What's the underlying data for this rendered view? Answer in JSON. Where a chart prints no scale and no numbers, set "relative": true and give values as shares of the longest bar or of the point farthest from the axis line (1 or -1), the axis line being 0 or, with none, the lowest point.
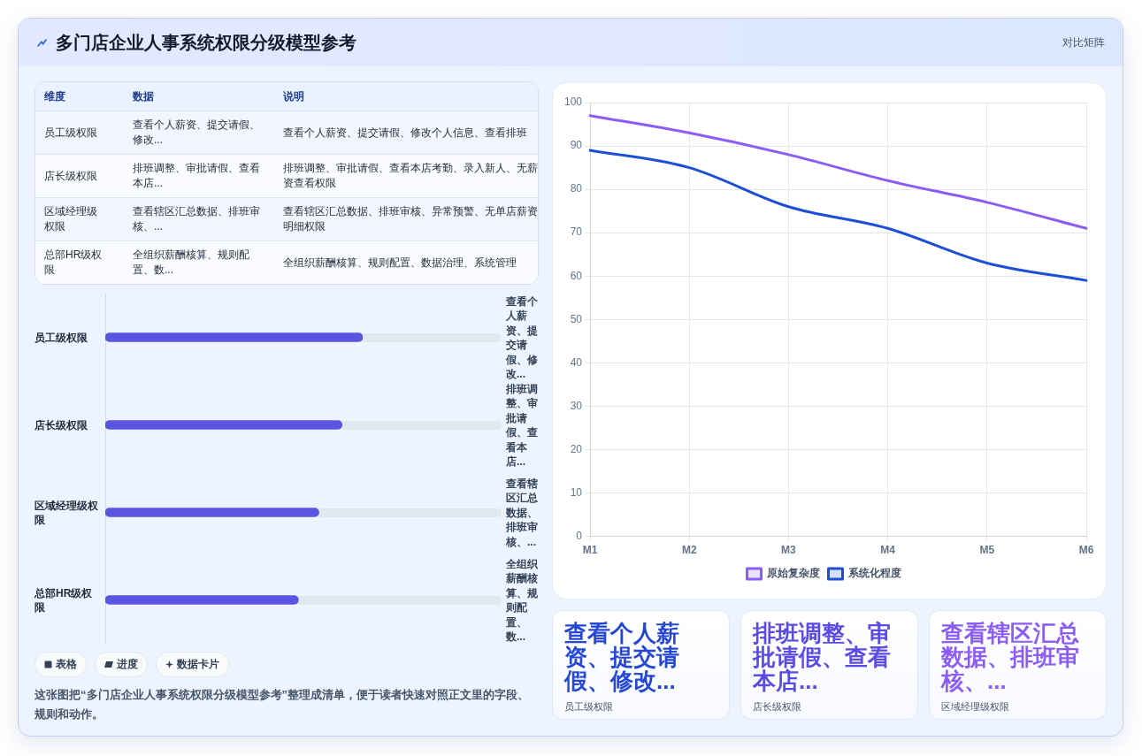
{
  "chart_data": [
    {
      "type": "other",
      "title": "多门店企业人事系统权限分级模型参考",
      "subtitle": "对比矩阵"
    },
    {
      "type": "other",
      "categories": [
        "维度",
        "数据",
        "说明"
      ],
      "y_categories": [
        "员工级权限",
        "店长级权限",
        "区域经理级权限",
        "总部HR级权限"
      ],
      "cell_labels": [
        [
          "查看个人薪资、提交请假、修改...",
          "查看个人薪资、提交请假、修改个人信息、查看排班"
        ],
        [
          "排班调整、审批请假、查看本店...",
          "排班调整、审批请假、查看本店考勤、录入新人、无薪资查看权限"
        ],
        [
          "查看辖区汇总数据、排班审核、...",
          "查看辖区汇总数据、排班审核、异常预警、无单店薪资明细权限"
        ],
        [
          "全组织薪酬核算、规则配置、数...",
          "全组织薪酬核算、规则配置、数据治理、系统管理"
        ]
      ]
    },
    {
      "type": "bar",
      "orientation": "horizontal",
      "relative": true,
      "categories": [
        "员工级权限",
        "店长级权限",
        "区域经理级权限",
        "总部HR级权限"
      ],
      "values": [
        1,
        0.92,
        0.83,
        0.75
      ],
      "color": "#5a54e0",
      "annotations": [
        "查看个人薪资、提交请假、修改...",
        "排班调整、审批请假、查看本店...",
        "查看辖区汇总数据、排班审核、...",
        "全组织薪酬核算、规则配置、数..."
      ]
    },
    {
      "type": "other",
      "categories": [
        "表格",
        "进度",
        "数据卡片"
      ],
      "annotations": [
        "这张图把“多门店企业人事系统权限分级模型参考”整理成清单，便于读者快速对照正文里的字段、规则和动作。"
      ]
    },
    {
      "type": "line",
      "categories": [
        "M1",
        "M2",
        "M3",
        "M4",
        "M5",
        "M6"
      ],
      "series": [
        {
          "name": "原始复杂度",
          "color": "#8b5cf6",
          "values": [
            97,
            93,
            88,
            82,
            77,
            71
          ]
        },
        {
          "name": "系统化程度",
          "color": "#1d4ed8",
          "values": [
            89,
            85,
            76,
            71,
            63,
            59
          ]
        }
      ],
      "ylim": [
        0,
        100
      ],
      "yticks": [
        0,
        10,
        20,
        30,
        40,
        50,
        60,
        70,
        80,
        90,
        100
      ],
      "grid": true,
      "legend": "bottom",
      "marker": "none"
    },
    {
      "type": "other",
      "categories": [
        "员工级权限",
        "店长级权限",
        "区域经理级权限"
      ],
      "annotations": [
        "查看个人薪资、提交请假、修改...",
        "排班调整、审批请假、查看本店...",
        "查看辖区汇总数据、排班审核、..."
      ]
    }
  ]
}
